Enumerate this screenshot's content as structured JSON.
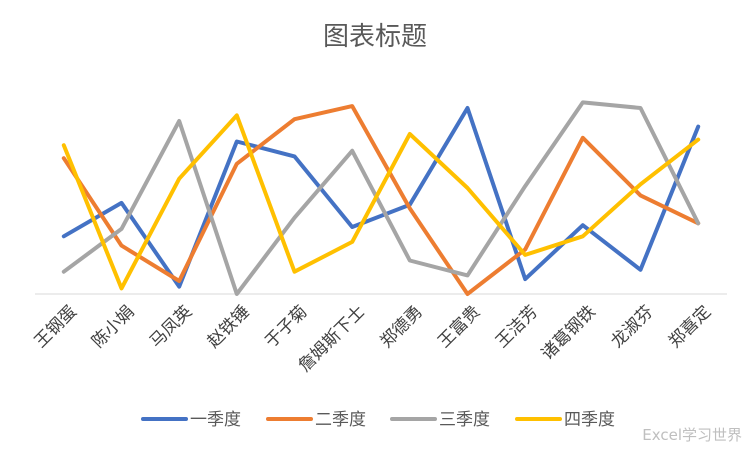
{
  "watermark": "Excel学习世界",
  "chart_data": {
    "type": "line",
    "title": "图表标题",
    "xlabel": "",
    "ylabel": "",
    "categories": [
      "王钢蛋",
      "陈小娟",
      "马凤英",
      "赵铁锤",
      "于子菊",
      "詹姆斯下士",
      "郑德勇",
      "王富贵",
      "王洁芳",
      "诸葛钢铁",
      "龙淑芬",
      "郑喜定"
    ],
    "ylim": [
      0,
      100
    ],
    "grid": false,
    "legend_position": "bottom",
    "series": [
      {
        "name": "一季度",
        "color": "#4472C4",
        "values": [
          31,
          49,
          4,
          82,
          74,
          36,
          48,
          100,
          8,
          37,
          13,
          90
        ]
      },
      {
        "name": "二季度",
        "color": "#ED7D31",
        "values": [
          73,
          26,
          7,
          70,
          94,
          101,
          46,
          0,
          24,
          84,
          53,
          38
        ]
      },
      {
        "name": "三季度",
        "color": "#A5A5A5",
        "values": [
          12,
          35,
          93,
          0,
          41,
          77,
          18,
          10,
          58,
          103,
          100,
          38
        ]
      },
      {
        "name": "四季度",
        "color": "#FFC000",
        "values": [
          80,
          3,
          62,
          96,
          12,
          28,
          86,
          57,
          21,
          31,
          59,
          83
        ]
      }
    ]
  }
}
